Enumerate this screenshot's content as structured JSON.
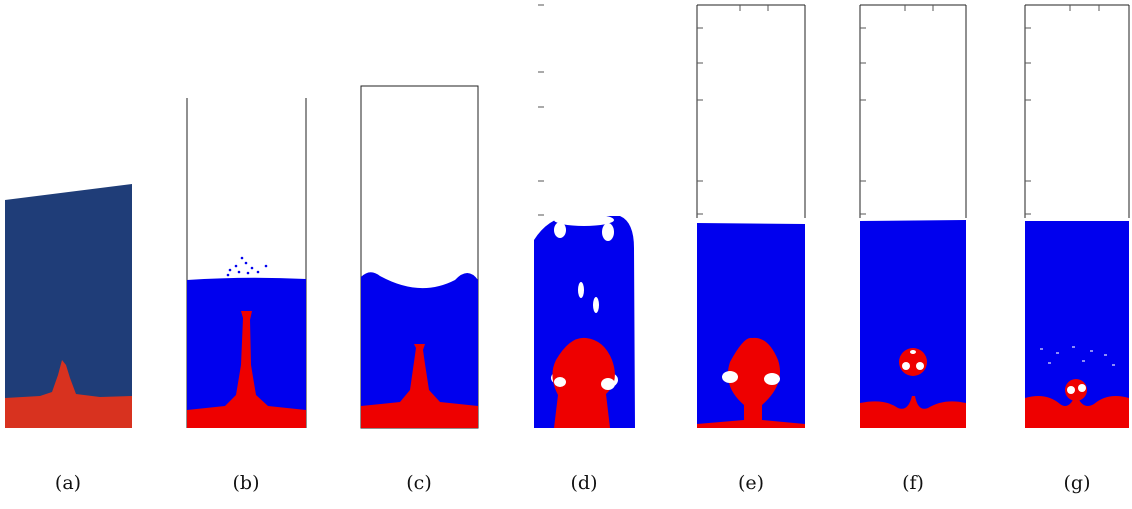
{
  "figure": {
    "colors": {
      "fluid_dark": "#1f3d78",
      "sediment_dark": "#d8321f",
      "fluid": "#0000ee",
      "sediment": "#ee0000",
      "border": "#222222"
    },
    "panels": [
      {
        "id": "a",
        "caption": "(a)"
      },
      {
        "id": "b",
        "caption": "(b)"
      },
      {
        "id": "c",
        "caption": "(c)"
      },
      {
        "id": "d",
        "caption": "(d)"
      },
      {
        "id": "e",
        "caption": "(e)"
      },
      {
        "id": "f",
        "caption": "(f)"
      },
      {
        "id": "g",
        "caption": "(g)"
      }
    ]
  }
}
